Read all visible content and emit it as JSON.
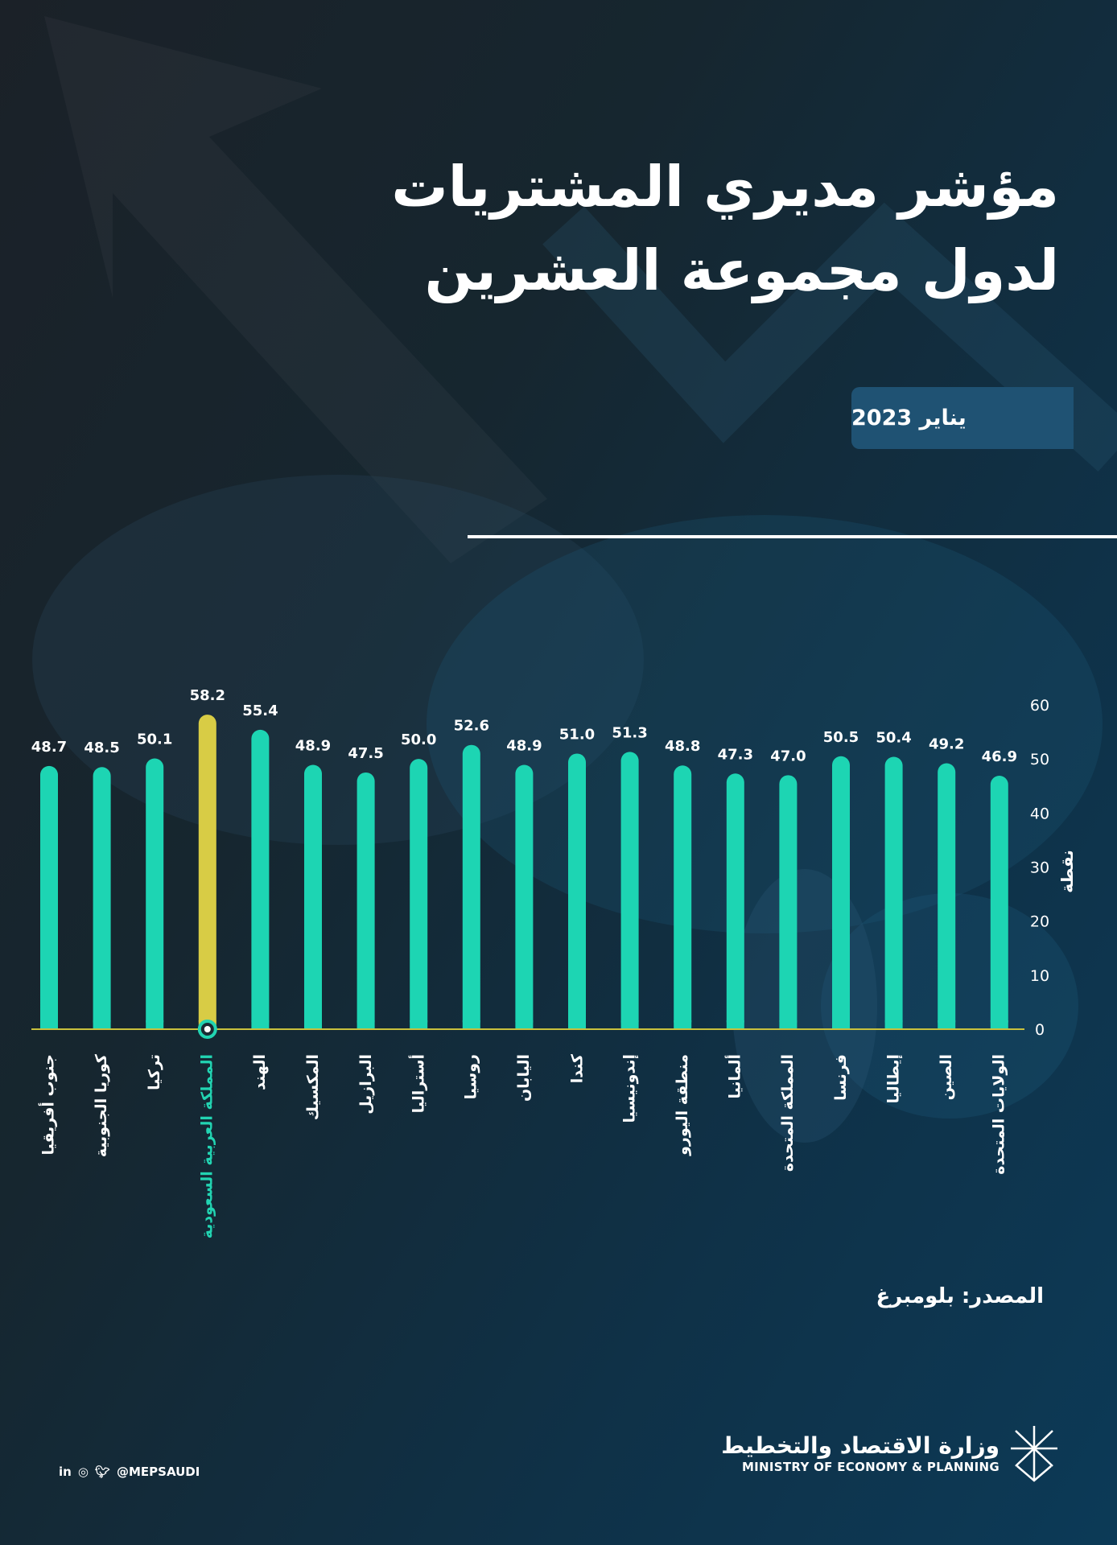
{
  "header": {
    "title_line1": "مؤشر مديري المشتريات",
    "title_line2": "لدول مجموعة العشرين",
    "date": "يناير 2023"
  },
  "chart_data": {
    "type": "bar",
    "title": "",
    "ylabel": "نقطة",
    "ylim": [
      0,
      60
    ],
    "yticks": [
      0,
      10,
      20,
      30,
      40,
      50,
      60
    ],
    "grid": false,
    "categories": [
      "جنوب أفريقيا",
      "كوريا الجنوبية",
      "تركيا",
      "المملكة العربية السعودية",
      "الهند",
      "المكسيك",
      "البرازيل",
      "أستراليا",
      "روسيا",
      "اليابان",
      "كندا",
      "إندونيسيا",
      "منطقة اليورو",
      "ألمانيا",
      "المملكة المتحدة",
      "فرنسا",
      "إيطاليا",
      "الصين",
      "الولايات المتحدة"
    ],
    "values": [
      48.7,
      48.5,
      50.1,
      58.2,
      55.4,
      48.9,
      47.5,
      50.0,
      52.6,
      48.9,
      51.0,
      51.3,
      48.8,
      47.3,
      47.0,
      50.5,
      50.4,
      49.2,
      46.9
    ],
    "value_labels": [
      "48.7",
      "48.5",
      "50.1",
      "58.2",
      "55.4",
      "48.9",
      "47.5",
      "50.0",
      "52.6",
      "48.9",
      "51.0",
      "51.3",
      "48.8",
      "47.3",
      "47.0",
      "50.5",
      "50.4",
      "49.2",
      "46.9"
    ],
    "highlight_index": 3,
    "colors": {
      "bar": "#1dd5b3",
      "highlight": "#d8cc45",
      "highlight_label": "#22d4b2",
      "baseline": "#c9c13d"
    }
  },
  "footer": {
    "source": "المصدر: بلومبرغ",
    "social_handle": "@MEPSAUDI",
    "social_icons": [
      "linkedin-icon",
      "instagram-icon",
      "twitter-icon"
    ],
    "logo_ar": "وزارة الاقتصاد والتخطيط",
    "logo_en": "MINISTRY OF ECONOMY & PLANNING"
  }
}
